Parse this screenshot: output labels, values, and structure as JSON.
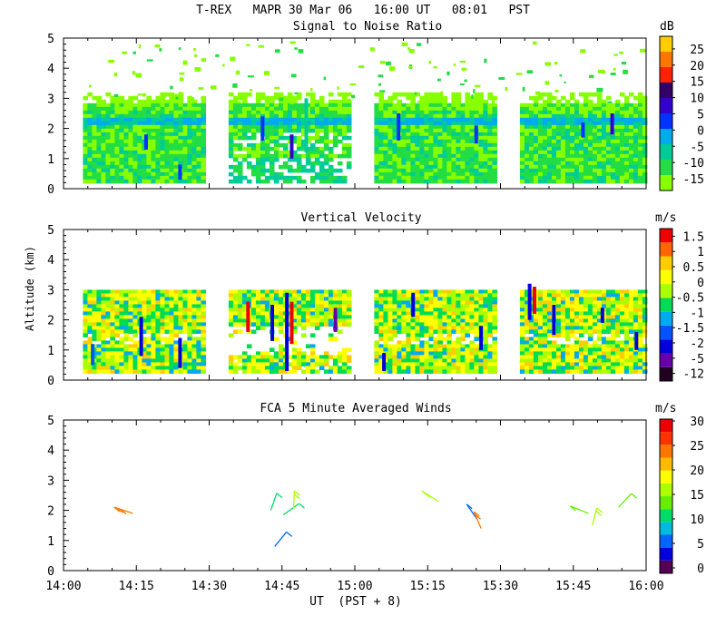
{
  "header": {
    "title": "T-REX   MAPR 30 Mar 06   16:00 UT   08:01   PST"
  },
  "x_axis": {
    "label": "UT  (PST + 8)",
    "tick_labels": [
      "14:00",
      "14:15",
      "14:30",
      "14:45",
      "15:00",
      "15:15",
      "15:30",
      "15:45",
      "16:00"
    ],
    "tick_minutes": [
      0,
      15,
      30,
      45,
      60,
      75,
      90,
      105,
      120
    ]
  },
  "colors": {
    "snr": [
      "#88ff00",
      "#22dd44",
      "#00cc99",
      "#00aaee",
      "#0033ff",
      "#3300cc",
      "#330066",
      "#ff2200",
      "#ff7700",
      "#ffcc00"
    ],
    "vel": [
      "#220022",
      "#6600aa",
      "#0000dd",
      "#0055ff",
      "#00aaee",
      "#00dd55",
      "#aaff00",
      "#ffff00",
      "#ffcc00",
      "#ff6600",
      "#ee0000"
    ],
    "wind": [
      "#550055",
      "#0000dd",
      "#0066ff",
      "#00bbdd",
      "#00dd66",
      "#66ee00",
      "#aaff00",
      "#ffff00",
      "#ffbb00",
      "#ff7700",
      "#ff3300",
      "#ee0000"
    ]
  },
  "chart_data": [
    {
      "type": "heatmap",
      "title": "Signal to Noise Ratio",
      "xlabel": "UT  (PST + 8)",
      "ylabel": "",
      "xlim": [
        0,
        120
      ],
      "ylim": [
        0,
        5
      ],
      "y_ticks": [
        "0",
        "1",
        "2",
        "3",
        "4",
        "5"
      ],
      "colorbar": {
        "unit": "dB",
        "labels": [
          "-15",
          "-10",
          "-5",
          "0",
          "5",
          "10",
          "15",
          "20",
          "25"
        ]
      },
      "data_blocks_minutes": [
        [
          4,
          29
        ],
        [
          34,
          59
        ],
        [
          64,
          89
        ],
        [
          94,
          120
        ]
      ],
      "data_altitude_km": [
        0.3,
        3.2
      ]
    },
    {
      "type": "heatmap",
      "title": "Vertical Velocity",
      "xlabel": "UT  (PST + 8)",
      "ylabel": "Altitude (km)",
      "xlim": [
        0,
        120
      ],
      "ylim": [
        0,
        5
      ],
      "y_ticks": [
        "0",
        "1",
        "2",
        "3",
        "4",
        "5"
      ],
      "colorbar": {
        "unit": "m/s",
        "labels": [
          "-12",
          "-5",
          "-2",
          "-1.5",
          "-1",
          "-0.5",
          "0",
          "0.5",
          "1",
          "1.5"
        ]
      },
      "data_blocks_minutes": [
        [
          4,
          29
        ],
        [
          34,
          59
        ],
        [
          64,
          89
        ],
        [
          94,
          120
        ]
      ],
      "data_altitude_km": [
        0.3,
        3.0
      ]
    },
    {
      "type": "scatter",
      "title": "FCA 5 Minute Averaged Winds",
      "xlabel": "UT  (PST + 8)",
      "ylabel": "",
      "xlim": [
        0,
        120
      ],
      "ylim": [
        0,
        5
      ],
      "y_ticks": [
        "0",
        "1",
        "2",
        "3",
        "4",
        "5"
      ],
      "colorbar": {
        "unit": "m/s",
        "labels": [
          "0",
          "5",
          "10",
          "15",
          "20",
          "25",
          "30"
        ]
      },
      "barbs": [
        {
          "t": 14.3,
          "alt": 1.9,
          "speed": 25
        },
        {
          "t": 42.7,
          "alt": 2.0,
          "speed": 11
        },
        {
          "t": 43.5,
          "alt": 0.8,
          "speed": 6
        },
        {
          "t": 45.3,
          "alt": 1.85,
          "speed": 12
        },
        {
          "t": 47.4,
          "alt": 2.05,
          "speed": 15
        },
        {
          "t": 77.2,
          "alt": 2.3,
          "speed": 16
        },
        {
          "t": 85.2,
          "alt": 1.7,
          "speed": 6
        },
        {
          "t": 86.0,
          "alt": 1.4,
          "speed": 24
        },
        {
          "t": 108.1,
          "alt": 1.9,
          "speed": 13
        },
        {
          "t": 108.9,
          "alt": 1.5,
          "speed": 16
        },
        {
          "t": 114.3,
          "alt": 2.1,
          "speed": 14
        }
      ]
    }
  ]
}
